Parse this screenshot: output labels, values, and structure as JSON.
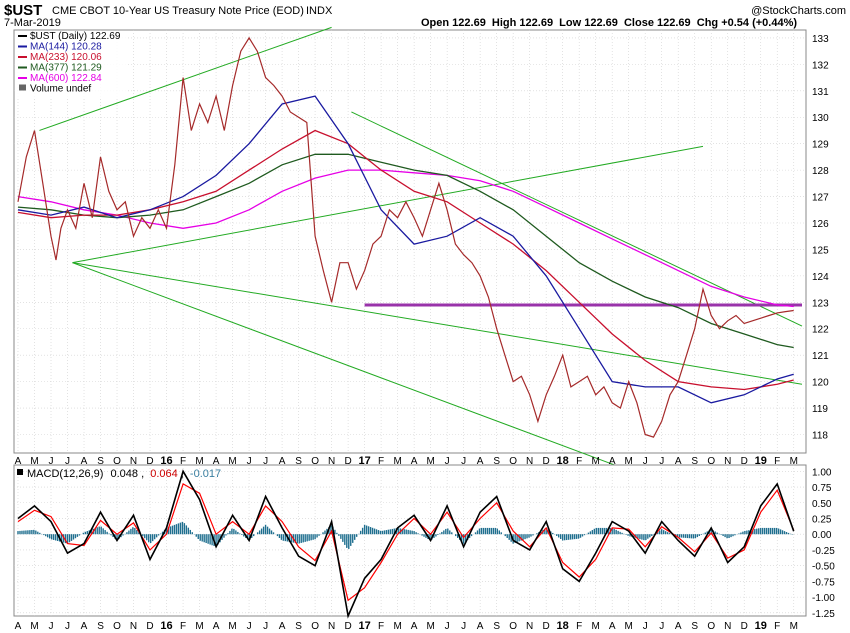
{
  "header": {
    "symbol": "$UST",
    "description": "CME CBOT 10-Year US Treasury Note Price (EOD)",
    "exchange": "INDX",
    "date": "7-Mar-2019",
    "watermark": "@StockCharts.com",
    "quote": "Open 122.69  High 122.69  Low 122.69  Close 122.69  Chg +0.54 (+0.44%)"
  },
  "colors": {
    "price": "#a52a2a",
    "ma144": "#1a1aa0",
    "ma233": "#c8102e",
    "ma377": "#1f5a1f",
    "ma600": "#e600e6",
    "trend": "#22aa22",
    "hline": "#9933aa",
    "hist": "#1f6f8f",
    "macd": "#000000",
    "signal": "#ff0000",
    "grid": "#d0d0d0"
  },
  "legend": [
    {
      "text": "$UST (Daily) 122.69",
      "color": "#000000"
    },
    {
      "text": "MA(144) 120.28",
      "color": "#1a1aa0"
    },
    {
      "text": "MA(233) 120.06",
      "color": "#c8102e"
    },
    {
      "text": "MA(377) 121.29",
      "color": "#1f5a1f"
    },
    {
      "text": "MA(600) 122.84",
      "color": "#e600e6"
    },
    {
      "text": "Volume undef",
      "color": "#000000"
    }
  ],
  "macd_legend": {
    "label": "MACD(12,26,9)",
    "macd": "0.048",
    "signal": "0.064",
    "hist": "-0.017"
  },
  "chart_data": [
    {
      "type": "line",
      "title": "$UST CME CBOT 10-Year US Treasury Note Price (EOD)",
      "x_ticks": [
        "A",
        "M",
        "J",
        "J",
        "A",
        "S",
        "O",
        "N",
        "D",
        "16",
        "F",
        "M",
        "A",
        "M",
        "J",
        "J",
        "A",
        "S",
        "O",
        "N",
        "D",
        "17",
        "F",
        "M",
        "A",
        "M",
        "J",
        "J",
        "A",
        "S",
        "O",
        "N",
        "D",
        "18",
        "F",
        "M",
        "A",
        "M",
        "J",
        "J",
        "A",
        "S",
        "O",
        "N",
        "D",
        "19",
        "F",
        "M"
      ],
      "x_range": [
        0,
        47.5
      ],
      "ylim": [
        117.3,
        133.3
      ],
      "y_ticks": [
        118,
        119,
        120,
        121,
        122,
        123,
        124,
        125,
        126,
        127,
        128,
        129,
        130,
        131,
        132,
        133
      ],
      "grid": true,
      "series": [
        {
          "name": "$UST (Daily)",
          "last": 122.69,
          "x": [
            0,
            0.5,
            1,
            1.5,
            2,
            2.3,
            2.6,
            3,
            3.5,
            4,
            4.5,
            5,
            5.5,
            6,
            6.5,
            7,
            7.5,
            8,
            8.5,
            9,
            9.5,
            10,
            10.5,
            11,
            11.5,
            12,
            12.5,
            13,
            13.5,
            14,
            14.5,
            15,
            15.5,
            16,
            16.5,
            17,
            17.5,
            18,
            18.5,
            19,
            19.5,
            20,
            20.5,
            21,
            21.5,
            22,
            22.5,
            23,
            23.5,
            24,
            24.5,
            25,
            25.5,
            26,
            26.5,
            27,
            27.5,
            28,
            28.5,
            29,
            29.5,
            30,
            30.5,
            31,
            31.5,
            32,
            32.5,
            33,
            33.5,
            34,
            34.5,
            35,
            35.5,
            36,
            36.5,
            37,
            37.5,
            38,
            38.5,
            39,
            39.5,
            40,
            40.5,
            41,
            41.5,
            42,
            42.5,
            43,
            43.5,
            44,
            44.5,
            45,
            45.5,
            46,
            46.5,
            47
          ],
          "values": [
            126.8,
            128.5,
            129.5,
            127.5,
            125.5,
            124.6,
            125.8,
            126.5,
            125.8,
            127.5,
            126.2,
            128.5,
            127.2,
            126.5,
            126.8,
            125.5,
            126.2,
            125.8,
            126.5,
            125.8,
            128.2,
            131.5,
            129.5,
            130.5,
            129.8,
            130.8,
            129.5,
            131.2,
            132.5,
            133.0,
            132.5,
            131.5,
            131.2,
            130.8,
            130.2,
            130.0,
            129.8,
            125.5,
            124.2,
            123.0,
            124.5,
            124.5,
            123.5,
            124.2,
            125.2,
            125.5,
            126.5,
            126.2,
            126.8,
            126.2,
            125.5,
            126.5,
            127.5,
            126.5,
            125.2,
            124.8,
            124.5,
            124.0,
            123.2,
            122.0,
            121.0,
            120.0,
            120.2,
            119.5,
            118.5,
            119.5,
            120.2,
            121.0,
            119.8,
            120.0,
            120.2,
            119.5,
            119.8,
            119.2,
            119.0,
            120.0,
            119.2,
            118.0,
            117.9,
            118.5,
            119.5,
            120.0,
            121.0,
            122.0,
            123.5,
            122.5,
            122.0,
            122.3,
            122.5,
            122.2,
            122.3,
            122.4,
            122.5,
            122.6,
            122.65,
            122.69
          ]
        },
        {
          "name": "MA(144)",
          "last": 120.28,
          "x": [
            0,
            2,
            4,
            6,
            8,
            10,
            12,
            14,
            16,
            18,
            20,
            22,
            24,
            26,
            28,
            30,
            32,
            34,
            36,
            38,
            40,
            42,
            44,
            46,
            47
          ],
          "values": [
            126.5,
            126.3,
            126.6,
            126.2,
            126.5,
            127.0,
            127.8,
            129.0,
            130.5,
            130.8,
            129.0,
            126.5,
            125.2,
            125.5,
            126.2,
            125.5,
            124.0,
            122.0,
            120.0,
            119.8,
            119.8,
            119.2,
            119.5,
            120.1,
            120.28
          ]
        },
        {
          "name": "MA(233)",
          "last": 120.06,
          "x": [
            0,
            2,
            4,
            6,
            8,
            10,
            12,
            14,
            16,
            18,
            20,
            22,
            24,
            26,
            28,
            30,
            32,
            34,
            36,
            38,
            40,
            42,
            44,
            46,
            47
          ],
          "values": [
            126.4,
            126.2,
            126.3,
            126.3,
            126.5,
            126.8,
            127.2,
            128.0,
            128.8,
            129.5,
            129.0,
            128.0,
            127.2,
            126.8,
            126.0,
            125.2,
            124.2,
            123.0,
            121.8,
            120.8,
            120.0,
            119.8,
            119.7,
            119.9,
            120.06
          ]
        },
        {
          "name": "MA(377)",
          "last": 121.29,
          "x": [
            0,
            2,
            4,
            6,
            8,
            10,
            12,
            14,
            16,
            18,
            20,
            22,
            24,
            26,
            28,
            30,
            32,
            34,
            36,
            38,
            40,
            42,
            44,
            46,
            47
          ],
          "values": [
            126.6,
            126.5,
            126.3,
            126.2,
            126.3,
            126.5,
            127.0,
            127.5,
            128.2,
            128.6,
            128.6,
            128.3,
            128.0,
            127.8,
            127.2,
            126.5,
            125.5,
            124.5,
            123.8,
            123.2,
            122.8,
            122.2,
            121.8,
            121.4,
            121.29
          ]
        },
        {
          "name": "MA(600)",
          "last": 122.84,
          "x": [
            0,
            2,
            4,
            6,
            8,
            10,
            12,
            14,
            16,
            18,
            20,
            22,
            24,
            26,
            28,
            30,
            32,
            34,
            36,
            38,
            40,
            42,
            44,
            46,
            47
          ],
          "values": [
            127.0,
            126.8,
            126.5,
            126.3,
            126.0,
            125.8,
            126.0,
            126.5,
            127.2,
            127.7,
            128.0,
            128.0,
            127.9,
            127.8,
            127.6,
            127.2,
            126.6,
            126.0,
            125.4,
            124.8,
            124.2,
            123.6,
            123.2,
            122.9,
            122.84
          ]
        }
      ],
      "trendlines": [
        {
          "x": [
            1.3,
            19.0
          ],
          "values": [
            129.5,
            133.4
          ]
        },
        {
          "x": [
            3.3,
            41.5
          ],
          "values": [
            124.5,
            128.9
          ]
        },
        {
          "x": [
            3.3,
            47.5
          ],
          "values": [
            124.5,
            119.9
          ]
        },
        {
          "x": [
            3.3,
            47.5
          ],
          "values": [
            124.5,
            114.2
          ]
        },
        {
          "x": [
            20.2,
            47.5
          ],
          "values": [
            130.2,
            122.1
          ]
        }
      ],
      "horizontal_line": {
        "value": 122.9,
        "x": [
          21.0,
          47.5
        ]
      }
    },
    {
      "type": "line",
      "title": "MACD(12,26,9)",
      "ylim": [
        -1.3,
        1.1
      ],
      "y_ticks": [
        "1.00",
        "0.75",
        "0.50",
        "0.25",
        "0.00",
        "-0.25",
        "-0.50",
        "-0.75",
        "-1.00",
        "-1.25"
      ],
      "grid": true,
      "series": [
        {
          "name": "MACD",
          "last": 0.048,
          "x": [
            0,
            1,
            2,
            3,
            4,
            5,
            6,
            7,
            8,
            9,
            10,
            11,
            12,
            13,
            14,
            15,
            16,
            17,
            18,
            19,
            20,
            21,
            22,
            23,
            24,
            25,
            26,
            27,
            28,
            29,
            30,
            31,
            32,
            33,
            34,
            35,
            36,
            37,
            38,
            39,
            40,
            41,
            42,
            43,
            44,
            45,
            46,
            47
          ],
          "values": [
            0.25,
            0.45,
            0.2,
            -0.3,
            -0.15,
            0.35,
            -0.1,
            0.3,
            -0.4,
            0.1,
            1.0,
            0.55,
            -0.2,
            0.3,
            -0.1,
            0.6,
            0.1,
            -0.35,
            -0.5,
            0.2,
            -1.3,
            -0.7,
            -0.4,
            0.1,
            0.3,
            -0.1,
            0.45,
            -0.2,
            0.35,
            0.6,
            -0.1,
            -0.25,
            0.2,
            -0.55,
            -0.75,
            -0.3,
            0.2,
            0.05,
            -0.3,
            0.2,
            -0.1,
            -0.35,
            0.1,
            -0.45,
            -0.2,
            0.45,
            0.8,
            0.048
          ]
        },
        {
          "name": "Signal",
          "last": 0.064,
          "x": [
            0,
            1,
            2,
            3,
            4,
            5,
            6,
            7,
            8,
            9,
            10,
            11,
            12,
            13,
            14,
            15,
            16,
            17,
            18,
            19,
            20,
            21,
            22,
            23,
            24,
            25,
            26,
            27,
            28,
            29,
            30,
            31,
            32,
            33,
            34,
            35,
            36,
            37,
            38,
            39,
            40,
            41,
            42,
            43,
            44,
            45,
            46,
            47
          ],
          "values": [
            0.2,
            0.38,
            0.28,
            -0.15,
            -0.18,
            0.22,
            0.0,
            0.18,
            -0.25,
            0.0,
            0.8,
            0.65,
            0.0,
            0.2,
            0.0,
            0.45,
            0.2,
            -0.2,
            -0.42,
            0.05,
            -1.05,
            -0.85,
            -0.45,
            0.0,
            0.25,
            0.0,
            0.35,
            -0.05,
            0.25,
            0.5,
            0.05,
            -0.2,
            0.1,
            -0.45,
            -0.68,
            -0.4,
            0.1,
            0.08,
            -0.2,
            0.12,
            -0.05,
            -0.28,
            0.02,
            -0.38,
            -0.25,
            0.35,
            0.7,
            0.064
          ]
        }
      ]
    }
  ]
}
